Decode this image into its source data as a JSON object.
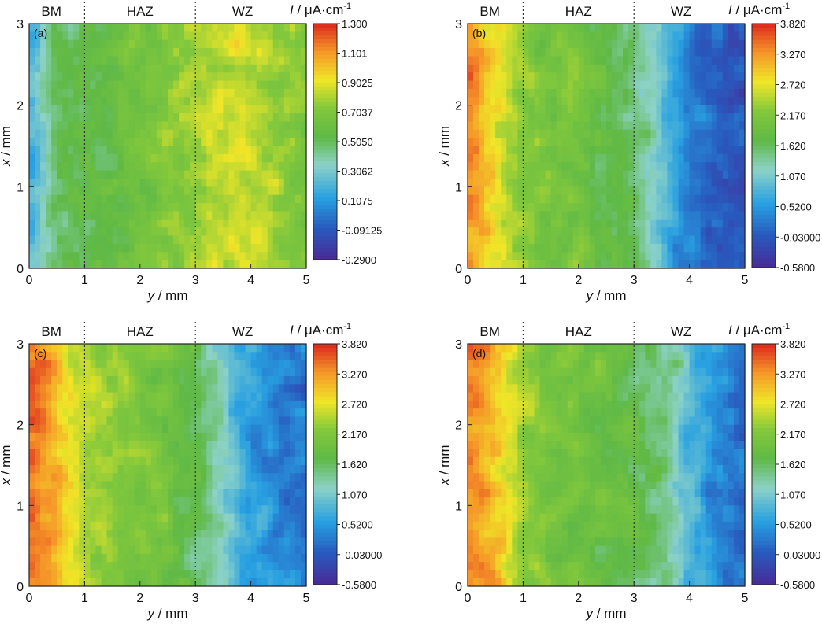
{
  "chart_data": [
    {
      "type": "heatmap",
      "panel_label": "(a)",
      "zones": [
        "BM",
        "HAZ",
        "WZ"
      ],
      "zone_boundaries": [
        1,
        3
      ],
      "xlabel_var": "y",
      "xlabel_unit": " / mm",
      "ylabel_var": "x",
      "ylabel_unit": " / mm",
      "xlim": [
        0,
        5
      ],
      "ylim": [
        0,
        3
      ],
      "x_ticks": [
        "0",
        "1",
        "2",
        "3",
        "4",
        "5"
      ],
      "y_ticks": [
        "0",
        "1",
        "2",
        "3"
      ],
      "colorbar_var": "I",
      "colorbar_unit": " / μA·cm",
      "colorbar_exp": "-1",
      "colorbar_ticks": [
        "1.300",
        "1.101",
        "0.9025",
        "0.7037",
        "0.5050",
        "0.3062",
        "0.1075",
        "-0.09125",
        "-0.2900"
      ],
      "zmin": -0.29,
      "zmax": 1.3,
      "z_profile_y": [
        0,
        0.25,
        0.5,
        1.0,
        1.5,
        2.0,
        2.5,
        3.0,
        3.5,
        4.0,
        4.5,
        5.0
      ],
      "z_profile_values": [
        0.15,
        0.35,
        0.5,
        0.55,
        0.58,
        0.65,
        0.72,
        0.78,
        0.85,
        0.85,
        0.78,
        0.7
      ]
    },
    {
      "type": "heatmap",
      "panel_label": "(b)",
      "zones": [
        "BM",
        "HAZ",
        "WZ"
      ],
      "zone_boundaries": [
        1,
        3
      ],
      "xlabel_var": "y",
      "xlabel_unit": " / mm",
      "ylabel_var": "x",
      "ylabel_unit": " / mm",
      "xlim": [
        0,
        5
      ],
      "ylim": [
        0,
        3
      ],
      "x_ticks": [
        "0",
        "1",
        "2",
        "3",
        "4",
        "5"
      ],
      "y_ticks": [
        "0",
        "1",
        "2",
        "3"
      ],
      "colorbar_var": "I",
      "colorbar_unit": " / μA·cm",
      "colorbar_exp": "-1",
      "colorbar_ticks": [
        "3.820",
        "3.270",
        "2.720",
        "2.170",
        "1.620",
        "1.070",
        "0.5200",
        "-0.03000",
        "-0.5800"
      ],
      "zmin": -0.58,
      "zmax": 3.82,
      "z_profile_y": [
        0,
        0.3,
        0.6,
        1.0,
        1.5,
        2.0,
        2.5,
        3.0,
        3.5,
        4.0,
        4.5,
        5.0
      ],
      "z_profile_values": [
        3.4,
        3.1,
        2.7,
        2.25,
        2.1,
        2.0,
        1.8,
        1.5,
        1.0,
        0.3,
        0.0,
        -0.1
      ]
    },
    {
      "type": "heatmap",
      "panel_label": "(c)",
      "zones": [
        "BM",
        "HAZ",
        "WZ"
      ],
      "zone_boundaries": [
        1,
        3
      ],
      "xlabel_var": "y",
      "xlabel_unit": " / mm",
      "ylabel_var": "x",
      "ylabel_unit": " / mm",
      "xlim": [
        0,
        5
      ],
      "ylim": [
        0,
        3
      ],
      "x_ticks": [
        "0",
        "1",
        "2",
        "3",
        "4",
        "5"
      ],
      "y_ticks": [
        "0",
        "1",
        "2",
        "3"
      ],
      "colorbar_var": "I",
      "colorbar_unit": " / μA·cm",
      "colorbar_exp": "-1",
      "colorbar_ticks": [
        "3.820",
        "3.270",
        "2.720",
        "2.170",
        "1.620",
        "1.070",
        "0.5200",
        "-0.03000",
        "-0.5800"
      ],
      "zmin": -0.58,
      "zmax": 3.82,
      "z_profile_y": [
        0,
        0.3,
        0.6,
        1.0,
        1.5,
        2.0,
        2.5,
        3.0,
        3.5,
        4.0,
        4.5,
        5.0
      ],
      "z_profile_values": [
        3.5,
        3.3,
        3.0,
        2.5,
        2.3,
        2.1,
        2.0,
        1.7,
        1.2,
        0.6,
        0.3,
        0.25
      ]
    },
    {
      "type": "heatmap",
      "panel_label": "(d)",
      "zones": [
        "BM",
        "HAZ",
        "WZ"
      ],
      "zone_boundaries": [
        1,
        3
      ],
      "xlabel_var": "y",
      "xlabel_unit": " / mm",
      "ylabel_var": "x",
      "ylabel_unit": " / mm",
      "xlim": [
        0,
        5
      ],
      "ylim": [
        0,
        3
      ],
      "x_ticks": [
        "0",
        "1",
        "2",
        "3",
        "4",
        "5"
      ],
      "y_ticks": [
        "0",
        "1",
        "2",
        "3"
      ],
      "colorbar_var": "I",
      "colorbar_unit": " / μA·cm",
      "colorbar_exp": "-1",
      "colorbar_ticks": [
        "3.820",
        "3.270",
        "2.720",
        "2.170",
        "1.620",
        "1.070",
        "0.5200",
        "-0.03000",
        "-0.5800"
      ],
      "zmin": -0.58,
      "zmax": 3.82,
      "z_profile_y": [
        0,
        0.3,
        0.6,
        1.0,
        1.5,
        2.0,
        2.5,
        3.0,
        3.5,
        4.0,
        4.5,
        5.0
      ],
      "z_profile_values": [
        3.45,
        3.2,
        2.9,
        2.3,
        2.1,
        2.0,
        1.9,
        1.75,
        1.5,
        0.9,
        0.4,
        0.2
      ]
    }
  ]
}
